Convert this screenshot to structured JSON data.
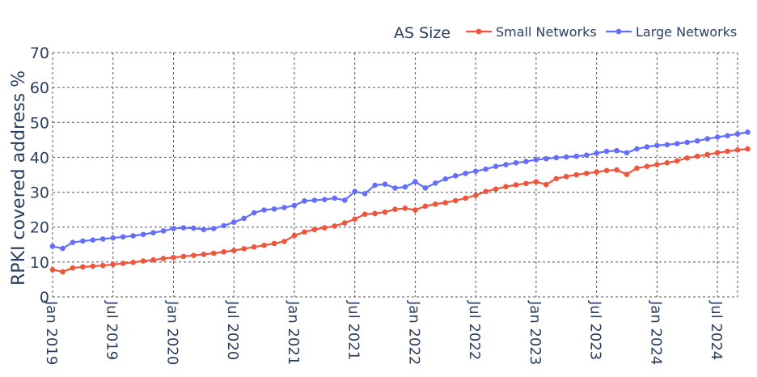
{
  "chart_data": {
    "type": "line",
    "title": "",
    "ylabel": "RPKI covered address %",
    "xlabel": "",
    "ylim": [
      0,
      70
    ],
    "yticks": [
      0,
      10,
      20,
      30,
      40,
      50,
      60,
      70
    ],
    "xticks": [
      {
        "label": "Jan 2019",
        "t": 0
      },
      {
        "label": "Jul 2019",
        "t": 6
      },
      {
        "label": "Jan 2020",
        "t": 12
      },
      {
        "label": "Jul 2020",
        "t": 18
      },
      {
        "label": "Jan 2021",
        "t": 24
      },
      {
        "label": "Jul 2021",
        "t": 30
      },
      {
        "label": "Jan 2022",
        "t": 36
      },
      {
        "label": "Jul 2022",
        "t": 42
      },
      {
        "label": "Jan 2023",
        "t": 48
      },
      {
        "label": "Jul 2023",
        "t": 54
      },
      {
        "label": "Jan 2024",
        "t": 60
      },
      {
        "label": "Jul 2024",
        "t": 66
      }
    ],
    "xlim": [
      0,
      68
    ],
    "legend": {
      "title": "AS Size",
      "position": "top-right",
      "orientation": "horizontal"
    },
    "grid": true,
    "series": [
      {
        "name": "Small Networks",
        "color": "#EF553B",
        "values": [
          7.8,
          7.2,
          8.3,
          8.6,
          8.8,
          9.0,
          9.3,
          9.6,
          9.9,
          10.3,
          10.6,
          11.0,
          11.3,
          11.6,
          11.9,
          12.2,
          12.5,
          12.9,
          13.3,
          13.8,
          14.3,
          14.8,
          15.3,
          15.9,
          17.6,
          18.6,
          19.3,
          19.8,
          20.3,
          21.2,
          22.3,
          23.7,
          23.9,
          24.3,
          25.1,
          25.4,
          24.9,
          26.0,
          26.6,
          27.0,
          27.6,
          28.3,
          29.1,
          30.2,
          30.9,
          31.6,
          32.1,
          32.5,
          33.0,
          32.2,
          33.9,
          34.5,
          35.0,
          35.4,
          35.8,
          36.2,
          36.4,
          35.1,
          36.9,
          37.4,
          37.9,
          38.4,
          39.0,
          39.8,
          40.3,
          40.8,
          41.3,
          41.7,
          42.1,
          42.4
        ],
        "x_start": 0
      },
      {
        "name": "Large Networks",
        "color": "#636EFA",
        "values": [
          14.5,
          13.9,
          15.6,
          16.0,
          16.3,
          16.6,
          16.9,
          17.2,
          17.5,
          17.9,
          18.4,
          18.9,
          19.6,
          19.8,
          19.7,
          19.3,
          19.6,
          20.4,
          21.4,
          22.5,
          24.1,
          24.9,
          25.2,
          25.6,
          26.2,
          27.5,
          27.7,
          27.9,
          28.3,
          27.7,
          30.2,
          29.6,
          32.0,
          32.3,
          31.2,
          31.5,
          33.0,
          31.2,
          32.6,
          33.8,
          34.7,
          35.4,
          36.0,
          36.6,
          37.4,
          37.9,
          38.4,
          38.8,
          39.3,
          39.6,
          39.9,
          40.1,
          40.3,
          40.6,
          41.2,
          41.7,
          41.9,
          41.3,
          42.4,
          43.0,
          43.4,
          43.6,
          43.9,
          44.3,
          44.7,
          45.3,
          45.8,
          46.2,
          46.7,
          47.2
        ],
        "x_start": 0
      }
    ]
  }
}
